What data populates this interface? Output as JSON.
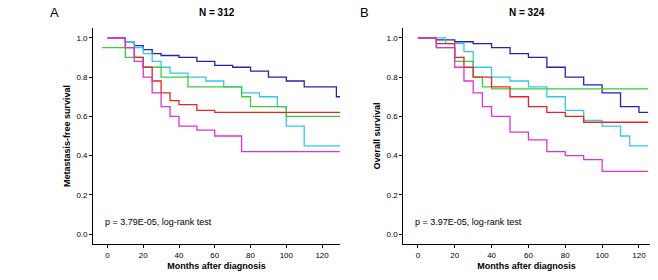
{
  "chart_data": [
    {
      "type": "line",
      "line_style": "step",
      "panel_label": "A",
      "title": "N = 312",
      "x_label": "Months after diagnosis",
      "y_label": "Metastasis-free survival",
      "annotation": "p = 3.79E-05, log-rank test",
      "xlim": [
        -8,
        130
      ],
      "xticks": [
        0,
        20,
        40,
        60,
        80,
        100,
        120
      ],
      "ylim": [
        -0.05,
        1.05
      ],
      "yticks": [
        {
          "value": 0,
          "label": "0.0"
        },
        0.2,
        0.4,
        0.6,
        0.8,
        {
          "value": 1,
          "label": "1.0"
        }
      ],
      "grid": false,
      "tick_labels": true,
      "series": [
        {
          "color": "#2323b4",
          "x": [
            0,
            10,
            15,
            20,
            25,
            30,
            40,
            50,
            60,
            70,
            80,
            90,
            100,
            110,
            128,
            130
          ],
          "values": [
            1.0,
            0.98,
            0.96,
            0.94,
            0.92,
            0.91,
            0.9,
            0.88,
            0.86,
            0.85,
            0.83,
            0.8,
            0.78,
            0.75,
            0.7,
            0.7
          ]
        },
        {
          "color": "#33c8ea",
          "x": [
            0,
            10,
            15,
            20,
            25,
            30,
            35,
            45,
            55,
            65,
            75,
            85,
            95,
            100,
            110,
            130
          ],
          "values": [
            1.0,
            0.98,
            0.95,
            0.92,
            0.88,
            0.85,
            0.82,
            0.8,
            0.78,
            0.75,
            0.72,
            0.7,
            0.65,
            0.55,
            0.45,
            0.45
          ]
        },
        {
          "color": "#3ccc3c",
          "x": [
            -3,
            10,
            20,
            30,
            45,
            75,
            80,
            100,
            130
          ],
          "values": [
            0.95,
            0.9,
            0.85,
            0.8,
            0.75,
            0.7,
            0.65,
            0.6,
            0.6
          ]
        },
        {
          "color": "#e82424",
          "x": [
            0,
            10,
            15,
            20,
            25,
            30,
            35,
            40,
            50,
            60,
            130
          ],
          "values": [
            1.0,
            0.95,
            0.9,
            0.85,
            0.78,
            0.72,
            0.68,
            0.66,
            0.63,
            0.62,
            0.62
          ]
        },
        {
          "color": "#d935d9",
          "x": [
            0,
            10,
            15,
            20,
            25,
            30,
            35,
            40,
            50,
            60,
            75,
            130
          ],
          "values": [
            1.0,
            0.95,
            0.88,
            0.8,
            0.72,
            0.65,
            0.6,
            0.55,
            0.53,
            0.5,
            0.42,
            0.42
          ]
        }
      ]
    },
    {
      "type": "line",
      "line_style": "step",
      "panel_label": "B",
      "title": "N = 324",
      "x_label": "Months after diagnosis",
      "y_label": "Overall survival",
      "annotation": "p = 3.97E-05, log-rank test",
      "xlim": [
        -8,
        126
      ],
      "xticks": [
        0,
        20,
        40,
        60,
        80,
        100,
        120
      ],
      "ylim": [
        -0.05,
        1.05
      ],
      "yticks": [
        {
          "value": 0,
          "label": "0.0"
        },
        0.2,
        0.4,
        0.6,
        0.8,
        {
          "value": 1,
          "label": "1.0"
        }
      ],
      "grid": false,
      "tick_labels": true,
      "series": [
        {
          "color": "#2323b4",
          "x": [
            0,
            10,
            20,
            30,
            40,
            50,
            60,
            70,
            80,
            90,
            100,
            110,
            120,
            125
          ],
          "values": [
            1.0,
            0.99,
            0.98,
            0.97,
            0.95,
            0.92,
            0.9,
            0.85,
            0.8,
            0.76,
            0.72,
            0.65,
            0.62,
            0.62
          ]
        },
        {
          "color": "#33c8ea",
          "x": [
            0,
            15,
            25,
            30,
            40,
            50,
            60,
            70,
            80,
            90,
            100,
            110,
            115,
            125
          ],
          "values": [
            1.0,
            0.97,
            0.93,
            0.85,
            0.8,
            0.78,
            0.75,
            0.7,
            0.63,
            0.58,
            0.55,
            0.5,
            0.45,
            0.45
          ]
        },
        {
          "color": "#3ccc3c",
          "x": [
            0,
            10,
            20,
            30,
            35,
            40,
            125
          ],
          "values": [
            1.0,
            0.95,
            0.88,
            0.8,
            0.75,
            0.74,
            0.74
          ]
        },
        {
          "color": "#e82424",
          "x": [
            0,
            10,
            20,
            25,
            30,
            40,
            50,
            60,
            70,
            80,
            90,
            125
          ],
          "values": [
            1.0,
            0.97,
            0.9,
            0.85,
            0.8,
            0.75,
            0.7,
            0.65,
            0.62,
            0.6,
            0.57,
            0.57
          ]
        },
        {
          "color": "#d935d9",
          "x": [
            0,
            10,
            20,
            25,
            30,
            35,
            40,
            50,
            60,
            70,
            80,
            90,
            100,
            125
          ],
          "values": [
            1.0,
            0.95,
            0.85,
            0.78,
            0.72,
            0.65,
            0.6,
            0.52,
            0.48,
            0.42,
            0.4,
            0.38,
            0.32,
            0.32
          ]
        }
      ]
    }
  ]
}
